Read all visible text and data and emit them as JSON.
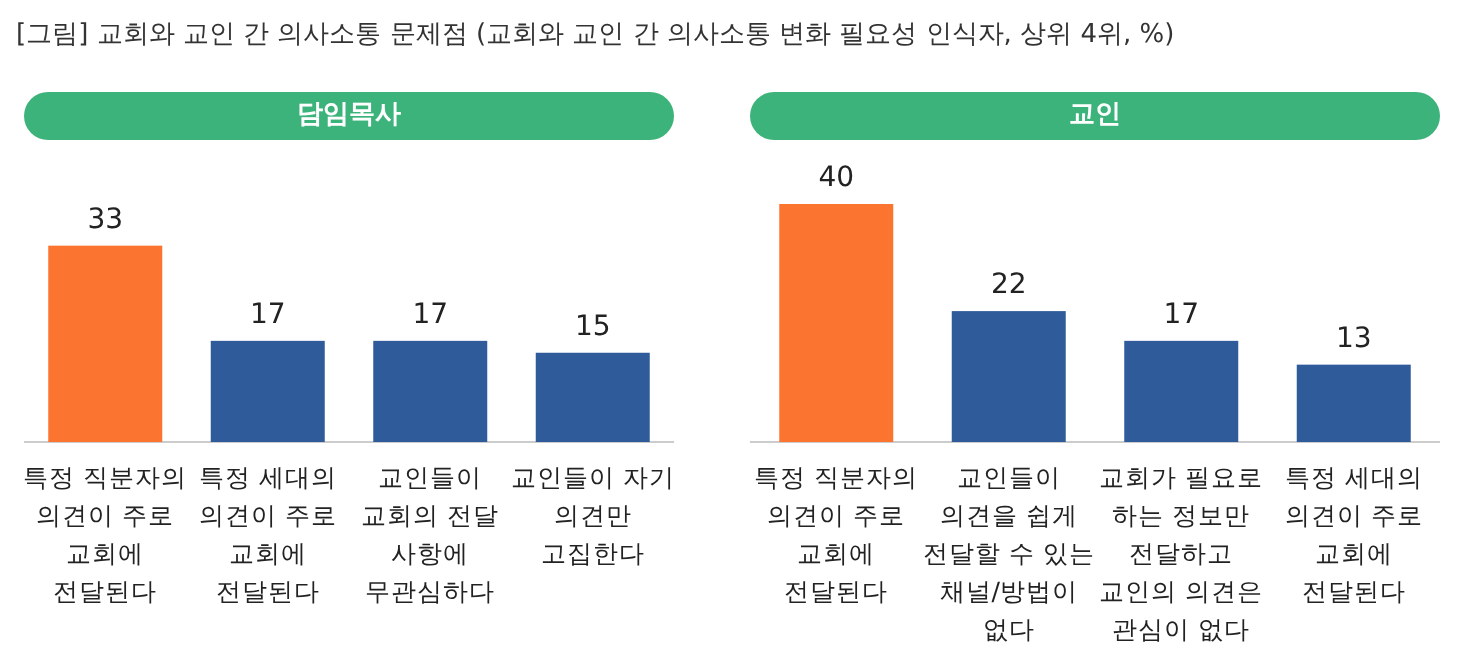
{
  "chart_data": [
    {
      "type": "bar",
      "title": "담임목사",
      "annotations": [
        "[그림] 교회와 교인 간 의사소통 문제점 (교회와 교인 간 의사소통 변화 필요성 인식자, 상위 4위, %)"
      ],
      "categories": [
        "특정 직분자의 의견이 주로 교회에 전달된다",
        "특정 세대의 의견이 주로 교회에 전달된다",
        "교인들이 교회의 전달 사항에 무관심하다",
        "교인들이 자기 의견만 고집한다"
      ],
      "values": [
        33,
        17,
        17,
        15
      ],
      "colors": [
        "#fb7430",
        "#2f5b9b",
        "#2f5b9b",
        "#2f5b9b"
      ],
      "data_labels": true
    },
    {
      "type": "bar",
      "title": "교인",
      "categories": [
        "특정 직분자의 의견이 주로 교회에 전달된다",
        "교인들이 의견을 쉽게 전달할 수 있는 채널/방법이 없다",
        "교회가 필요로 하는 정보만 전달하고 교인의 의견은 관심이 없다",
        "특정 세대의 의견이 주로 교회에 전달된다"
      ],
      "values": [
        40,
        22,
        17,
        13
      ],
      "colors": [
        "#fb7430",
        "#2f5b9b",
        "#2f5b9b",
        "#2f5b9b"
      ],
      "data_labels": true
    }
  ]
}
